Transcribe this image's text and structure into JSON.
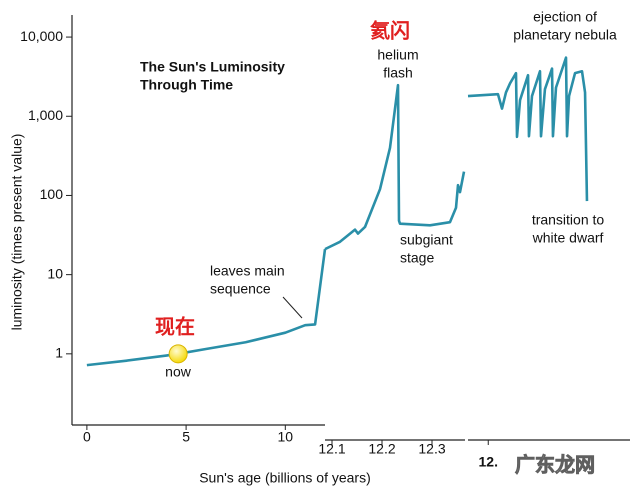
{
  "chart_data": [
    {
      "type": "line",
      "title": [
        "The Sun's Luminosity",
        "Through Time"
      ],
      "xlabel": "Sun's age (billions of years)",
      "ylabel": "luminosity (times present value)",
      "ylog": true,
      "xlim": [
        -0.75,
        12.0
      ],
      "ylim": [
        0.13,
        19000
      ],
      "xticks": [
        0,
        5,
        10
      ],
      "yticks": [
        {
          "value": 10000,
          "label": "10,000"
        },
        {
          "value": 1000,
          "label": "1,000"
        },
        100,
        10,
        1
      ],
      "series": [
        {
          "color": "#2a8fa8",
          "x": [
            0,
            2,
            4,
            4.6,
            6,
            8,
            10,
            11,
            11.5,
            12.0
          ],
          "values": [
            0.72,
            0.82,
            0.95,
            1.0,
            1.15,
            1.4,
            1.85,
            2.3,
            2.35,
            21
          ]
        }
      ],
      "marker": {
        "x": 4.6,
        "y": 1.0,
        "color": "#f5d90a"
      },
      "annotations": [
        [
          "氦闪"
        ],
        [
          "helium",
          "flash"
        ],
        [
          "ejection of",
          "planetary nebula"
        ],
        [
          "transition to",
          "white dwarf"
        ],
        [
          "subgiant",
          "stage"
        ],
        [
          "leaves main",
          "sequence"
        ],
        [
          "现在"
        ],
        [
          "now"
        ]
      ],
      "watermark": "广东龙网"
    },
    {
      "type": "line",
      "xlim": [
        12.086,
        12.366
      ],
      "ylim": [
        0.13,
        19000
      ],
      "xticks": [
        12.1,
        12.2,
        12.3
      ],
      "series": [
        {
          "color": "#2a8fa8",
          "x": [
            12.086,
            12.116,
            12.146,
            12.152,
            12.166,
            12.196,
            12.216,
            12.232,
            12.234,
            12.236,
            12.296,
            12.336,
            12.348,
            12.352,
            12.356,
            12.364
          ],
          "values": [
            21,
            26,
            37,
            33,
            40,
            120,
            400,
            2470,
            48,
            44,
            42,
            46,
            70,
            135,
            110,
            200
          ]
        }
      ]
    },
    {
      "type": "line",
      "xlim": [
        12.366,
        12.382
      ],
      "ylim": [
        0.13,
        19000
      ],
      "xticks": [
        {
          "value": 12.368,
          "label": "12."
        }
      ],
      "series": [
        {
          "color": "#2a8fa8",
          "x": [
            12.366,
            12.36896,
            12.36936,
            12.36975,
            12.37015,
            12.37074,
            12.37084,
            12.37114,
            12.37193,
            12.37202,
            12.37232,
            12.37311,
            12.37321,
            12.3736,
            12.3743,
            12.37439,
            12.37469,
            12.37568,
            12.37578,
            12.37598,
            12.37657,
            12.37726,
            12.37756,
            12.37775
          ],
          "values": [
            1800,
            1900,
            1250,
            2000,
            2600,
            3500,
            550,
            1600,
            3300,
            560,
            1800,
            3700,
            560,
            2200,
            4000,
            560,
            2300,
            5500,
            560,
            1800,
            3500,
            3700,
            2000,
            85
          ]
        }
      ]
    }
  ]
}
